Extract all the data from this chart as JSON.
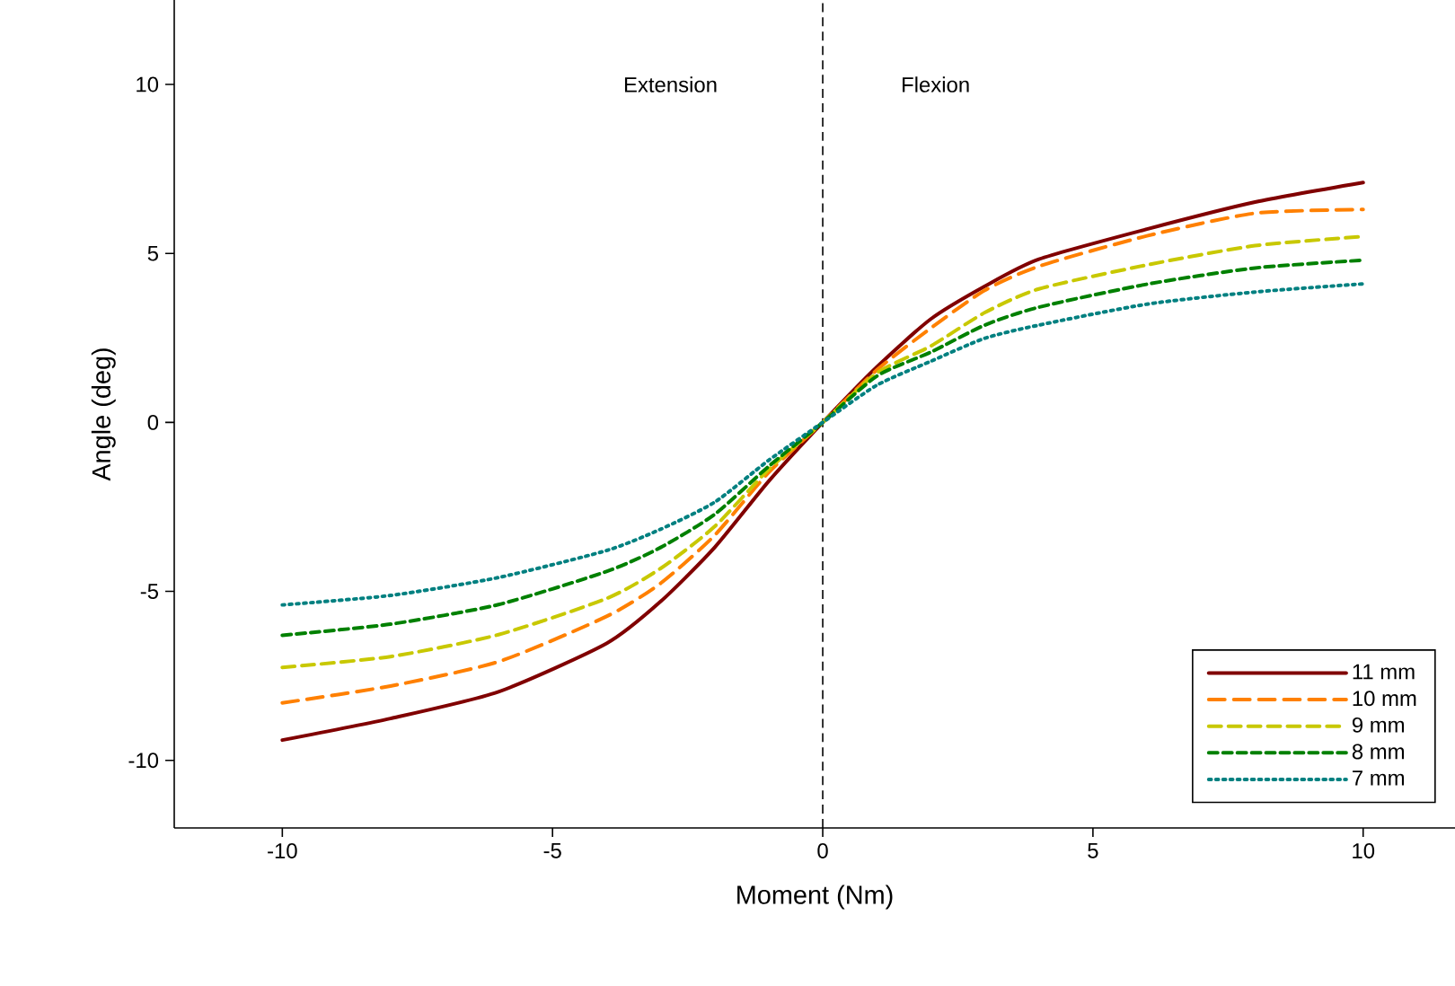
{
  "chart_data": {
    "type": "line",
    "xlabel": "Moment (Nm)",
    "ylabel": "Angle (deg)",
    "x": [
      -10,
      -8,
      -6,
      -4,
      -3,
      -2,
      -1,
      0,
      1,
      2,
      3,
      4,
      6,
      8,
      10
    ],
    "series": [
      {
        "name": "11 mm",
        "color": "#800000",
        "line_style": "solid",
        "values": [
          -9.4,
          -8.76,
          -7.97,
          -6.54,
          -5.3,
          -3.7,
          -1.74,
          0,
          1.64,
          3.06,
          4.03,
          4.83,
          5.72,
          6.52,
          7.1
        ]
      },
      {
        "name": "10 mm",
        "color": "#ff8000",
        "line_style": "dashed",
        "values": [
          -8.3,
          -7.8,
          -7.08,
          -5.74,
          -4.76,
          -3.34,
          -1.48,
          0,
          1.55,
          2.79,
          3.91,
          4.62,
          5.52,
          6.19,
          6.3
        ]
      },
      {
        "name": "9 mm",
        "color": "#c8c800",
        "line_style": "dashed",
        "values": [
          -7.25,
          -6.93,
          -6.28,
          -5.21,
          -4.32,
          -3.08,
          -1.39,
          0,
          1.46,
          2.26,
          3.25,
          3.95,
          4.66,
          5.23,
          5.5
        ]
      },
      {
        "name": "8 mm",
        "color": "#008000",
        "line_style": "dashed",
        "values": [
          -6.3,
          -5.97,
          -5.39,
          -4.41,
          -3.7,
          -2.72,
          -1.3,
          0,
          1.37,
          2.08,
          2.88,
          3.41,
          4.09,
          4.57,
          4.8
        ]
      },
      {
        "name": "7 mm",
        "color": "#008080",
        "line_style": "dotted",
        "values": [
          -5.4,
          -5.12,
          -4.59,
          -3.79,
          -3.16,
          -2.36,
          -1.12,
          0,
          1.1,
          1.81,
          2.49,
          2.88,
          3.5,
          3.86,
          4.1
        ]
      }
    ],
    "xlim": [
      -12,
      11.7
    ],
    "ylim": [
      -12,
      12.5
    ],
    "xticks": [
      -10,
      -5,
      0,
      5,
      10
    ],
    "yticks": [
      -10,
      -5,
      0,
      5,
      10
    ],
    "ref_lines": [
      {
        "axis": "x",
        "value": 0,
        "color": "#000000",
        "line_style": "dashed"
      }
    ],
    "annotations": [
      "Extension",
      "Flexion"
    ],
    "legend": "bottom right",
    "grid": false,
    "marker": "none"
  }
}
